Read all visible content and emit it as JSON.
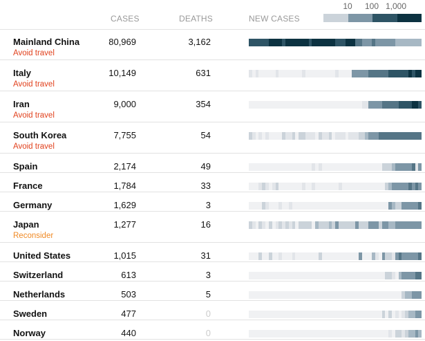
{
  "header": {
    "cases_label": "CASES",
    "deaths_label": "DEATHS",
    "new_cases_label": "NEW CASES",
    "legend_ticks": [
      "10",
      "100",
      "1,000"
    ]
  },
  "colors": {
    "advice_avoid": "#e1411d",
    "advice_reconsider": "#f08a25",
    "scale": [
      "#f0f1f3",
      "#e2e5e9",
      "#cbd3da",
      "#a7b8c4",
      "#7d96a6",
      "#557586",
      "#2e5465",
      "#0c3241"
    ],
    "legend": [
      "#cbd3da",
      "#7d96a6",
      "#2e5465",
      "#0c3241"
    ]
  },
  "rows": [
    {
      "country": "Mainland China",
      "advice": "Avoid travel",
      "advice_level": "avoid",
      "cases": "80,969",
      "deaths": "3,162",
      "strip": "6666667777677777776777777766677755444544444433333333"
    },
    {
      "country": "Italy",
      "advice": "Avoid travel",
      "advice_level": "avoid",
      "cases": "10,149",
      "deaths": "631",
      "strip": "1010000010000000100000000010000444445555556666667677"
    },
    {
      "country": "Iran",
      "advice": "Avoid travel",
      "advice_level": "avoid",
      "cases": "9,000",
      "deaths": "354",
      "strip": "0000000000000000000000000000000000114444555556666776"
    },
    {
      "country": "South Korea",
      "advice": "Avoid travel",
      "advice_level": "avoid",
      "cases": "7,755",
      "deaths": "54",
      "strip": "2101010000211202211102112011101112234445555555555555"
    },
    {
      "country": "Spain",
      "advice": "",
      "advice_level": "",
      "cases": "2,174",
      "deaths": "49",
      "strip": "0000000000000000000101000000000000000000222344444514"
    },
    {
      "country": "France",
      "advice": "",
      "advice_level": "",
      "cases": "1,784",
      "deaths": "33",
      "strip": "0001210120000000100100000001000000000000023444445454"
    },
    {
      "country": "Germany",
      "advice": "",
      "advice_level": "",
      "cases": "1,629",
      "deaths": "3",
      "strip": "0000210001001000000000000000000000000000004322444445"
    },
    {
      "country": "Japan",
      "advice": "Reconsider",
      "advice_level": "reconsider",
      "cases": "1,277",
      "deaths": "16",
      "strip": "2102102012121202222032223242222242224442443344444444"
    },
    {
      "country": "United States",
      "advice": "",
      "advice_level": "",
      "cases": "1,015",
      "deaths": "31",
      "strip": "0002002001000100000002000000000004000310422145444445"
    },
    {
      "country": "Switzerland",
      "advice": "",
      "advice_level": "",
      "cases": "613",
      "deaths": "3",
      "strip": "0000000000000000000000000000000000000000022103444455"
    },
    {
      "country": "Netherlands",
      "advice": "",
      "advice_level": "",
      "cases": "503",
      "deaths": "5",
      "strip": "0000000000000000000000000000000000000000000000233444"
    },
    {
      "country": "Sweden",
      "advice": "",
      "advice_level": "",
      "cases": "477",
      "deaths": "0",
      "strip": "0000000000000000000000000000000000000000202010123344"
    },
    {
      "country": "Norway",
      "advice": "",
      "advice_level": "",
      "cases": "440",
      "deaths": "0",
      "strip": "0000000000000000000000000000000000000000001022123343"
    }
  ]
}
